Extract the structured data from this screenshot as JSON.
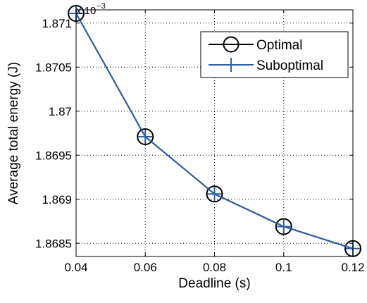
{
  "chart_data": {
    "type": "line",
    "xlabel": "Deadline (s)",
    "ylabel": "Average total energy (J)",
    "y_scale_base": "x 10",
    "y_scale_exponent": "−3",
    "xlim": [
      0.04,
      0.12
    ],
    "ylim": [
      1.86835,
      1.87115
    ],
    "x_ticks": [
      0.04,
      0.06,
      0.08,
      0.1,
      0.12
    ],
    "x_tick_labels": [
      "0.04",
      "0.06",
      "0.08",
      "0.1",
      "0.12"
    ],
    "y_ticks": [
      1.8685,
      1.869,
      1.8695,
      1.87,
      1.8705,
      1.871
    ],
    "y_tick_labels": [
      "1.8685",
      "1.869",
      "1.8695",
      "1.87",
      "1.8705",
      "1.871"
    ],
    "grid": true,
    "legend_position": "top-right",
    "series": [
      {
        "name": "Optimal",
        "marker": "circle",
        "color": "#000000",
        "x": [
          0.04,
          0.06,
          0.08,
          0.1,
          0.12
        ],
        "y": [
          1.87111,
          1.86971,
          1.86906,
          1.86869,
          1.86844
        ]
      },
      {
        "name": "Suboptimal",
        "marker": "plus",
        "color": "#2e5ea8",
        "x": [
          0.04,
          0.06,
          0.08,
          0.1,
          0.12
        ],
        "y": [
          1.87111,
          1.86971,
          1.86906,
          1.86869,
          1.86844
        ]
      }
    ]
  }
}
